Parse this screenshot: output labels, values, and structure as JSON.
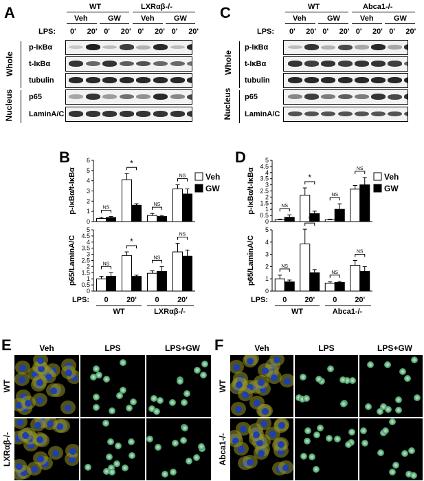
{
  "panels": {
    "A": {
      "label": "A"
    },
    "B": {
      "label": "B"
    },
    "C": {
      "label": "C"
    },
    "D": {
      "label": "D"
    },
    "E": {
      "label": "E"
    },
    "F": {
      "label": "F"
    }
  },
  "blotA": {
    "groups": [
      "WT",
      "LXRαβ-/-"
    ],
    "treatments": [
      "Veh",
      "GW",
      "Veh",
      "GW"
    ],
    "lps_label": "LPS:",
    "times": [
      "0'",
      "20'",
      "0'",
      "20'",
      "0'",
      "20'",
      "0'",
      "20'"
    ],
    "rows": [
      "p-IκBα",
      "t-IκBα",
      "tubulin",
      "p65",
      "LaminA/C"
    ],
    "sections": [
      "Whole",
      "Nucleus"
    ]
  },
  "blotC": {
    "groups": [
      "WT",
      "Abca1-/-"
    ],
    "treatments": [
      "Veh",
      "GW",
      "Veh",
      "GW"
    ],
    "lps_label": "LPS:",
    "times": [
      "0'",
      "20'",
      "0'",
      "20'",
      "0'",
      "20'",
      "0'",
      "20'"
    ],
    "rows": [
      "p-IκBα",
      "t-IκBα",
      "tubulin",
      "p65",
      "LaminA/C"
    ],
    "sections": [
      "Whole",
      "Nucleus"
    ]
  },
  "chart_data": [
    {
      "type": "bar",
      "panel": "B-top",
      "categories": [
        "WT 0",
        "WT 20'",
        "LXRαβ-/- 0",
        "LXRαβ-/- 20'"
      ],
      "series": [
        {
          "name": "Veh",
          "values": [
            0.3,
            4.1,
            0.6,
            3.2
          ],
          "errors": [
            0.1,
            0.6,
            0.2,
            0.4
          ]
        },
        {
          "name": "GW",
          "values": [
            0.4,
            1.6,
            0.5,
            2.7
          ],
          "errors": [
            0.1,
            0.15,
            0.1,
            0.5
          ]
        }
      ],
      "ylabel": "p-IκBα/t-IκBα",
      "ylim": [
        0,
        6
      ],
      "yticks": [
        "0",
        "1",
        "2",
        "3",
        "4",
        "5",
        "6"
      ],
      "annotations": [
        "NS",
        "*",
        "NS",
        "NS"
      ]
    },
    {
      "type": "bar",
      "panel": "B-bottom",
      "categories": [
        "WT 0",
        "WT 20'",
        "LXRαβ-/- 0",
        "LXRαβ-/- 20'"
      ],
      "series": [
        {
          "name": "Veh",
          "values": [
            1.0,
            2.9,
            1.45,
            3.2
          ],
          "errors": [
            0.2,
            0.3,
            0.2,
            0.7
          ]
        },
        {
          "name": "GW",
          "values": [
            1.2,
            1.2,
            1.6,
            2.85
          ],
          "errors": [
            0.3,
            0.1,
            0.4,
            0.5
          ]
        }
      ],
      "ylabel": "p65/LaminA/C",
      "ylim": [
        0,
        5
      ],
      "yticks": [
        "0",
        "0.5",
        "1",
        "1.5",
        "2",
        "2.5",
        "3",
        "3.5",
        "4",
        "4.5",
        "5"
      ],
      "annotations": [
        "NS",
        "*",
        "NS",
        "NS"
      ],
      "xlabels": {
        "lps": "LPS:",
        "times": [
          "0",
          "20'",
          "0",
          "20'"
        ],
        "groups": [
          "WT",
          "LXRαβ-/-"
        ]
      }
    },
    {
      "type": "bar",
      "panel": "D-top",
      "categories": [
        "WT 0",
        "WT 20'",
        "Abca1-/- 0",
        "Abca1-/- 20'"
      ],
      "series": [
        {
          "name": "Veh",
          "values": [
            0.15,
            2.15,
            0.15,
            2.65
          ],
          "errors": [
            0.05,
            0.6,
            0.05,
            0.3
          ]
        },
        {
          "name": "GW",
          "values": [
            0.35,
            0.65,
            1.0,
            3.0
          ],
          "errors": [
            0.2,
            0.2,
            0.45,
            0.6
          ]
        }
      ],
      "ylabel": "p-IκBα/t-IκBα",
      "ylim": [
        0,
        5
      ],
      "yticks": [
        "0",
        "0.5",
        "1",
        "1.5",
        "2",
        "2.5",
        "3",
        "3.5",
        "4",
        "4.5",
        "5"
      ],
      "annotations": [
        "NS",
        "*",
        "NS",
        "NS"
      ]
    },
    {
      "type": "bar",
      "panel": "D-bottom",
      "categories": [
        "WT 0",
        "WT 20'",
        "Abca1-/- 0",
        "Abca1-/- 20'"
      ],
      "series": [
        {
          "name": "Veh",
          "values": [
            1.0,
            3.85,
            0.65,
            2.1
          ],
          "errors": [
            0.3,
            1.2,
            0.1,
            0.4
          ]
        },
        {
          "name": "GW",
          "values": [
            0.75,
            1.5,
            0.7,
            1.6
          ],
          "errors": [
            0.15,
            0.25,
            0.1,
            0.4
          ]
        }
      ],
      "ylabel": "p65/LaminA/C",
      "ylim": [
        0,
        5
      ],
      "yticks": [
        "0",
        "1",
        "2",
        "3",
        "4",
        "5"
      ],
      "annotations": [
        "NS",
        "*",
        "NS",
        "NS"
      ],
      "xlabels": {
        "lps": "LPS:",
        "times": [
          "0",
          "20'",
          "0",
          "20'"
        ],
        "groups": [
          "WT",
          "Abca1-/-"
        ]
      }
    }
  ],
  "legendB": {
    "veh": "Veh",
    "gw": "GW"
  },
  "legendD": {
    "veh": "Veh",
    "gw": "GW"
  },
  "microE": {
    "cols": [
      "Veh",
      "LPS",
      "LPS+GW"
    ],
    "rows": [
      "WT",
      "LXRαβ-/-"
    ]
  },
  "microF": {
    "cols": [
      "Veh",
      "LPS",
      "LPS+GW"
    ],
    "rows": [
      "WT",
      "Abca1-/-"
    ]
  }
}
